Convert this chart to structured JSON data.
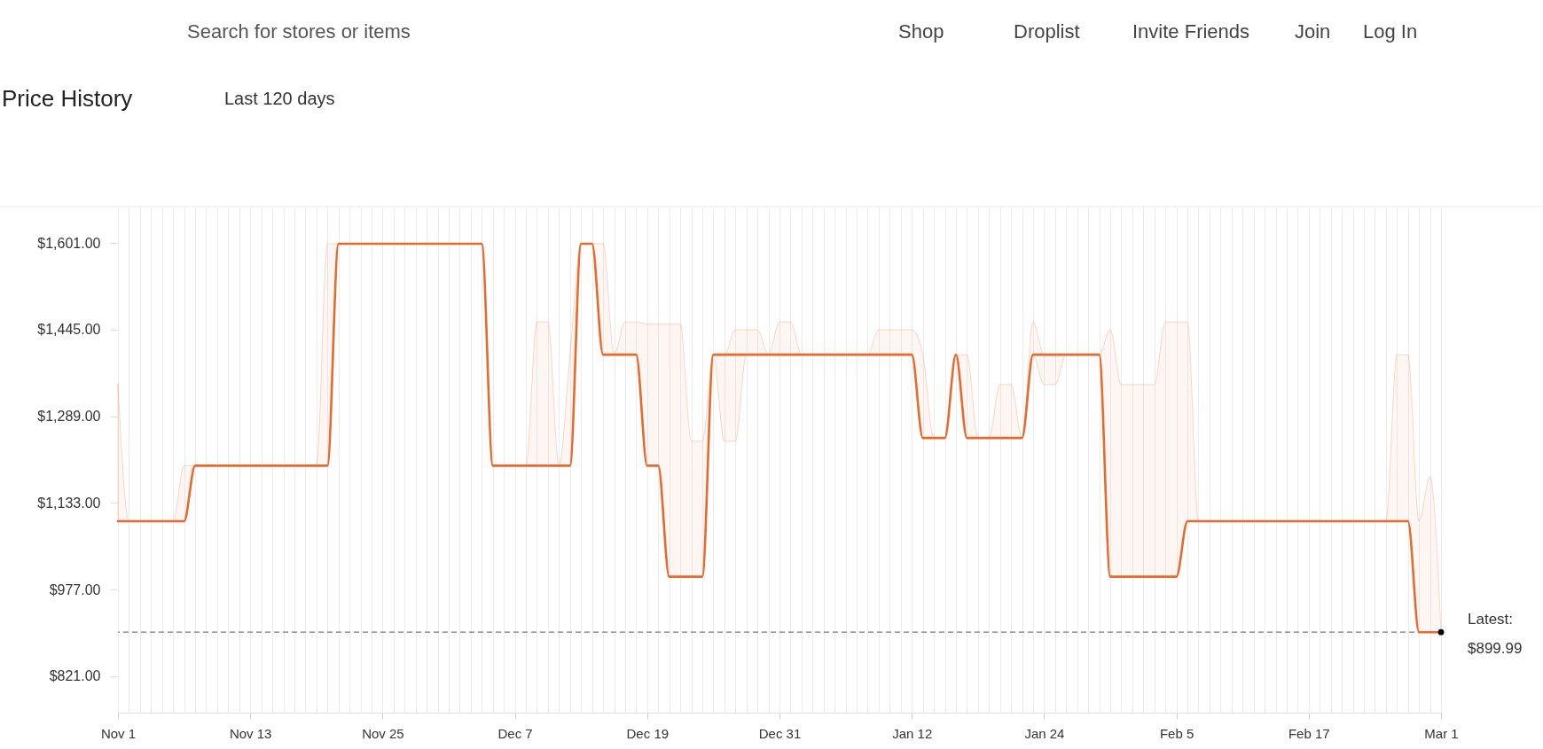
{
  "chart_data": {
    "type": "line",
    "title": "Price History",
    "subtitle": "Last 120 days",
    "annotations": [
      "Search for stores or items",
      "Shop",
      "Droplist",
      "Invite Friends",
      "Join",
      "Log In",
      {
        "text": "Latest:\n$899.99",
        "x": "Mar 1",
        "y": 899.99
      }
    ],
    "categories": [
      "Nov 1",
      null,
      null,
      null,
      null,
      null,
      null,
      null,
      null,
      null,
      null,
      null,
      "Nov 13",
      null,
      null,
      null,
      null,
      null,
      null,
      null,
      null,
      null,
      null,
      null,
      "Nov 25",
      null,
      null,
      null,
      null,
      null,
      null,
      null,
      null,
      null,
      null,
      null,
      "Dec 7",
      null,
      null,
      null,
      null,
      null,
      null,
      null,
      null,
      null,
      null,
      null,
      "Dec 19",
      null,
      null,
      null,
      null,
      null,
      null,
      null,
      null,
      null,
      null,
      null,
      "Dec 31",
      null,
      null,
      null,
      null,
      null,
      null,
      null,
      null,
      null,
      null,
      null,
      "Jan 12",
      null,
      null,
      null,
      null,
      null,
      null,
      null,
      null,
      null,
      null,
      null,
      "Jan 24",
      null,
      null,
      null,
      null,
      null,
      null,
      null,
      null,
      null,
      null,
      null,
      "Feb 5",
      null,
      null,
      null,
      null,
      null,
      null,
      null,
      null,
      null,
      null,
      null,
      "Feb 17",
      null,
      null,
      null,
      null,
      null,
      null,
      null,
      null,
      null,
      null,
      null,
      "Mar 1"
    ],
    "series": [
      {
        "color": "#e8692c",
        "values": [
          1100,
          1100,
          1100,
          1100,
          1100,
          1100,
          1100,
          1200,
          1200,
          1200,
          1200,
          1200,
          1200,
          1200,
          1200,
          1200,
          1200,
          1200,
          1200,
          1200,
          1600,
          1600,
          1600,
          1600,
          1600,
          1600,
          1600,
          1600,
          1600,
          1600,
          1600,
          1600,
          1600,
          1600,
          1200,
          1200,
          1200,
          1200,
          1200,
          1200,
          1200,
          1200,
          1600,
          1600,
          1400,
          1400,
          1400,
          1400,
          1200,
          1200,
          1000,
          1000,
          1000,
          1000,
          1400,
          1400,
          1400,
          1400,
          1400,
          1400,
          1400,
          1400,
          1400,
          1400,
          1400,
          1400,
          1400,
          1400,
          1400,
          1400,
          1400,
          1400,
          1400,
          1250,
          1250,
          1250,
          1400,
          1250,
          1250,
          1250,
          1250,
          1250,
          1250,
          1400,
          1400,
          1400,
          1400,
          1400,
          1400,
          1400,
          1000,
          1000,
          1000,
          1000,
          1000,
          1000,
          1000,
          1100,
          1100,
          1100,
          1100,
          1100,
          1100,
          1100,
          1100,
          1100,
          1100,
          1100,
          1100,
          1100,
          1100,
          1100,
          1100,
          1100,
          1100,
          1100,
          1100,
          1100,
          899.99,
          899.99,
          899.99
        ],
        "lower": [
          1100,
          1100,
          1100,
          1100,
          1100,
          1100,
          1100,
          1200,
          1200,
          1200,
          1200,
          1200,
          1200,
          1200,
          1200,
          1200,
          1200,
          1200,
          1200,
          1200,
          1600,
          1600,
          1600,
          1600,
          1600,
          1600,
          1600,
          1600,
          1600,
          1600,
          1600,
          1600,
          1600,
          1600,
          1200,
          1200,
          1200,
          1200,
          1200,
          1200,
          1200,
          1200,
          1600,
          1600,
          1400,
          1400,
          1400,
          1400,
          1200,
          1200,
          1000,
          1000,
          1000,
          1000,
          1400,
          1244,
          1244,
          1400,
          1400,
          1400,
          1400,
          1400,
          1400,
          1400,
          1400,
          1400,
          1400,
          1400,
          1400,
          1400,
          1400,
          1400,
          1400,
          1250,
          1250,
          1250,
          1400,
          1250,
          1250,
          1250,
          1250,
          1250,
          1250,
          1400,
          1346,
          1346,
          1400,
          1400,
          1400,
          1400,
          1000,
          1000,
          1000,
          1000,
          1000,
          1000,
          1000,
          1100,
          1100,
          1100,
          1100,
          1100,
          1100,
          1100,
          1100,
          1100,
          1100,
          1100,
          1100,
          1100,
          1100,
          1100,
          1100,
          1100,
          1100,
          1100,
          1100,
          1100,
          899.99,
          899.99,
          899.99
        ],
        "upper": [
          1348,
          1100,
          1100,
          1100,
          1100,
          1100,
          1200,
          1200,
          1200,
          1200,
          1200,
          1200,
          1200,
          1200,
          1200,
          1200,
          1200,
          1200,
          1200,
          1600,
          1600,
          1600,
          1600,
          1600,
          1600,
          1600,
          1600,
          1600,
          1600,
          1600,
          1600,
          1600,
          1600,
          1600,
          1200,
          1200,
          1200,
          1200,
          1459,
          1459,
          1200,
          1400,
          1600,
          1600,
          1600,
          1400,
          1459,
          1459,
          1455,
          1455,
          1455,
          1455,
          1244,
          1244,
          1400,
          1400,
          1445,
          1445,
          1445,
          1400,
          1459,
          1459,
          1400,
          1400,
          1400,
          1400,
          1400,
          1400,
          1400,
          1445,
          1445,
          1445,
          1445,
          1400,
          1250,
          1250,
          1400,
          1400,
          1250,
          1250,
          1346,
          1346,
          1250,
          1459,
          1400,
          1400,
          1400,
          1400,
          1400,
          1400,
          1445,
          1346,
          1346,
          1346,
          1346,
          1459,
          1459,
          1459,
          1100,
          1100,
          1100,
          1100,
          1100,
          1100,
          1100,
          1100,
          1100,
          1100,
          1100,
          1100,
          1100,
          1100,
          1100,
          1100,
          1100,
          1100,
          1400,
          1400,
          1100,
          1180,
          899.99
        ]
      }
    ],
    "ylim": [
      755,
      1667
    ],
    "yticks": [
      {
        "value": 821,
        "label": "$821.00"
      },
      {
        "value": 977,
        "label": "$977.00"
      },
      {
        "value": 1133,
        "label": "$1,133.00"
      },
      {
        "value": 1289,
        "label": "$1,289.00"
      },
      {
        "value": 1445,
        "label": "$1,445.00"
      },
      {
        "value": 1601,
        "label": "$1,601.00"
      }
    ],
    "grid": "x",
    "ref_lines": [
      {
        "axis": "y",
        "value": 899.99,
        "color": "#7a7a7a",
        "line_style": "dashed"
      }
    ]
  }
}
